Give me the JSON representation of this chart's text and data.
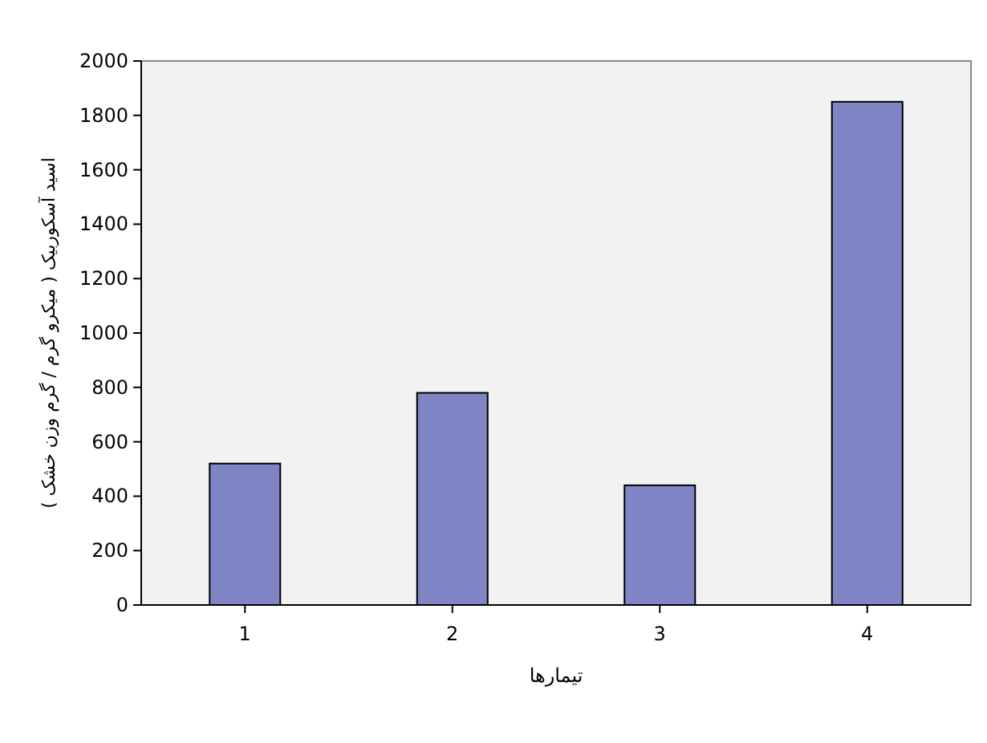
{
  "chart_data": {
    "type": "bar",
    "xlabel": "تیمارها",
    "ylabel": "اسید آسکوربیک ( میکرو گرم / گرم وزن خشک )",
    "categories": [
      "1",
      "2",
      "3",
      "4"
    ],
    "values": [
      520,
      780,
      440,
      1850
    ],
    "color": "#7f84c4",
    "ylim": [
      0,
      2000
    ],
    "yticks": [
      0,
      200,
      400,
      600,
      800,
      1000,
      1200,
      1400,
      1600,
      1800,
      2000
    ]
  }
}
